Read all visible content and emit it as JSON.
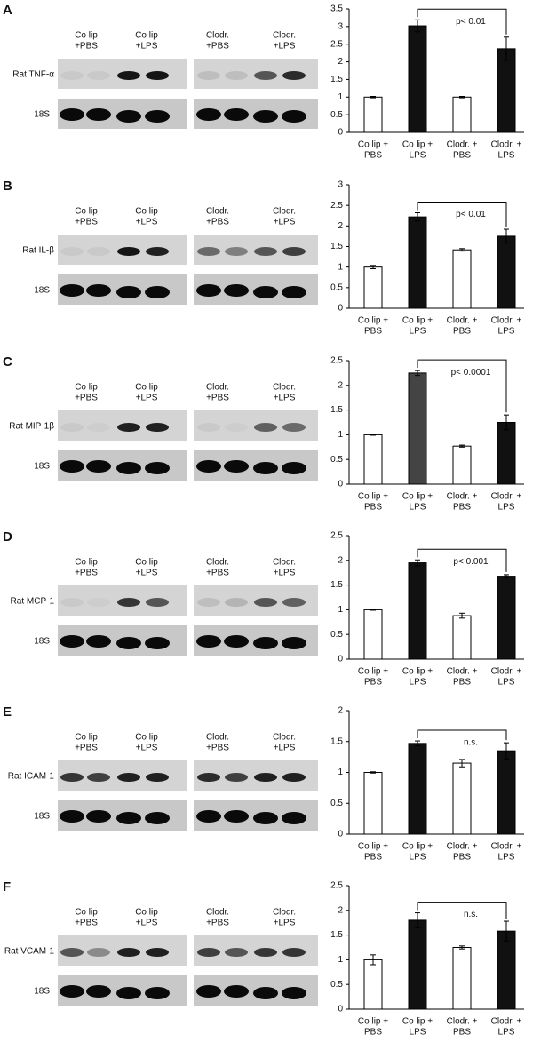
{
  "chart_data": [
    {
      "type": "bar",
      "panel": "A",
      "gene": "Rat TNF-α",
      "reference": "18S",
      "lane_groups": [
        [
          "Co lip",
          "+PBS"
        ],
        [
          "Co lip",
          "+LPS"
        ],
        [
          "Clodr.",
          "+PBS"
        ],
        [
          "Clodr.",
          "+LPS"
        ]
      ],
      "categories": [
        [
          "Co lip +",
          "PBS"
        ],
        [
          "Co lip +",
          "LPS"
        ],
        [
          "Clodr. +",
          "PBS"
        ],
        [
          "Clodr. +",
          "LPS"
        ]
      ],
      "values": [
        1,
        3.02,
        1,
        2.37
      ],
      "errors": [
        0.02,
        0.17,
        0.02,
        0.33
      ],
      "colors": [
        "#ffffff",
        "#111111",
        "#ffffff",
        "#111111"
      ],
      "ylim": [
        0,
        3.5
      ],
      "yticks": [
        0,
        0.5,
        1,
        1.5,
        2,
        2.5,
        3,
        3.5
      ],
      "annotation": "p< 0.01"
    },
    {
      "type": "bar",
      "panel": "B",
      "gene": "Rat IL-β",
      "reference": "18S",
      "lane_groups": [
        [
          "Co lip",
          "+PBS"
        ],
        [
          "Co lip",
          "+LPS"
        ],
        [
          "Clodr.",
          "+PBS"
        ],
        [
          "Clodr.",
          "+LPS"
        ]
      ],
      "categories": [
        [
          "Co lip +",
          "PBS"
        ],
        [
          "Co lip +",
          "LPS"
        ],
        [
          "Clodr. +",
          "PBS"
        ],
        [
          "Clodr. +",
          "LPS"
        ]
      ],
      "values": [
        1,
        2.22,
        1.42,
        1.75
      ],
      "errors": [
        0.04,
        0.1,
        0.03,
        0.17
      ],
      "colors": [
        "#ffffff",
        "#111111",
        "#ffffff",
        "#111111"
      ],
      "ylim": [
        0,
        3
      ],
      "yticks": [
        0,
        0.5,
        1,
        1.5,
        2,
        2.5,
        3
      ],
      "annotation": "p< 0.01"
    },
    {
      "type": "bar",
      "panel": "C",
      "gene": "Rat MIP-1β",
      "reference": "18S",
      "lane_groups": [
        [
          "Co lip",
          "+PBS"
        ],
        [
          "Co lip",
          "+LPS"
        ],
        [
          "Clodr.",
          "+PBS"
        ],
        [
          "Clodr.",
          "+LPS"
        ]
      ],
      "categories": [
        [
          "Co lip +",
          "PBS"
        ],
        [
          "Co lip +",
          "LPS"
        ],
        [
          "Clodr. +",
          "PBS"
        ],
        [
          "Clodr. +",
          "LPS"
        ]
      ],
      "values": [
        1,
        2.25,
        0.77,
        1.25
      ],
      "errors": [
        0.01,
        0.05,
        0.02,
        0.15
      ],
      "colors": [
        "#ffffff",
        "#444444",
        "#ffffff",
        "#111111"
      ],
      "ylim": [
        0,
        2.5
      ],
      "yticks": [
        0,
        0.5,
        1,
        1.5,
        2,
        2.5
      ],
      "annotation": "p< 0.0001"
    },
    {
      "type": "bar",
      "panel": "D",
      "gene": "Rat MCP-1",
      "reference": "18S",
      "lane_groups": [
        [
          "Co lip",
          "+PBS"
        ],
        [
          "Co lip",
          "+LPS"
        ],
        [
          "Clodr.",
          "+PBS"
        ],
        [
          "Clodr.",
          "+LPS"
        ]
      ],
      "categories": [
        [
          "Co lip +",
          "PBS"
        ],
        [
          "Co lip +",
          "LPS"
        ],
        [
          "Clodr. +",
          "PBS"
        ],
        [
          "Clodr. +",
          "LPS"
        ]
      ],
      "values": [
        1,
        1.95,
        0.88,
        1.68
      ],
      "errors": [
        0.01,
        0.06,
        0.05,
        0.03
      ],
      "colors": [
        "#ffffff",
        "#111111",
        "#ffffff",
        "#111111"
      ],
      "ylim": [
        0,
        2.5
      ],
      "yticks": [
        0,
        0.5,
        1,
        1.5,
        2,
        2.5
      ],
      "annotation": "p< 0.001"
    },
    {
      "type": "bar",
      "panel": "E",
      "gene": "Rat ICAM-1",
      "reference": "18S",
      "lane_groups": [
        [
          "Co lip",
          "+PBS"
        ],
        [
          "Co lip",
          "+LPS"
        ],
        [
          "Clodr.",
          "+PBS"
        ],
        [
          "Clodr.",
          "+LPS"
        ]
      ],
      "categories": [
        [
          "Co lip +",
          "PBS"
        ],
        [
          "Co lip +",
          "LPS"
        ],
        [
          "Clodr. +",
          "PBS"
        ],
        [
          "Clodr. +",
          "LPS"
        ]
      ],
      "values": [
        1,
        1.47,
        1.15,
        1.35
      ],
      "errors": [
        0.01,
        0.04,
        0.06,
        0.13
      ],
      "colors": [
        "#ffffff",
        "#111111",
        "#ffffff",
        "#111111"
      ],
      "ylim": [
        0,
        2
      ],
      "yticks": [
        0,
        0.5,
        1,
        1.5,
        2
      ],
      "annotation": "n.s."
    },
    {
      "type": "bar",
      "panel": "F",
      "gene": "Rat VCAM-1",
      "reference": "18S",
      "lane_groups": [
        [
          "Co lip",
          "+PBS"
        ],
        [
          "Co lip",
          "+LPS"
        ],
        [
          "Clodr.",
          "+PBS"
        ],
        [
          "Clodr.",
          "+LPS"
        ]
      ],
      "categories": [
        [
          "Co lip +",
          "PBS"
        ],
        [
          "Co lip +",
          "LPS"
        ],
        [
          "Clodr. +",
          "PBS"
        ],
        [
          "Clodr. +",
          "LPS"
        ]
      ],
      "values": [
        1,
        1.8,
        1.25,
        1.58
      ],
      "errors": [
        0.1,
        0.15,
        0.03,
        0.2
      ],
      "colors": [
        "#ffffff",
        "#111111",
        "#ffffff",
        "#111111"
      ],
      "ylim": [
        0,
        2.5
      ],
      "yticks": [
        0,
        0.5,
        1,
        1.5,
        2,
        2.5
      ],
      "annotation": "n.s."
    }
  ]
}
